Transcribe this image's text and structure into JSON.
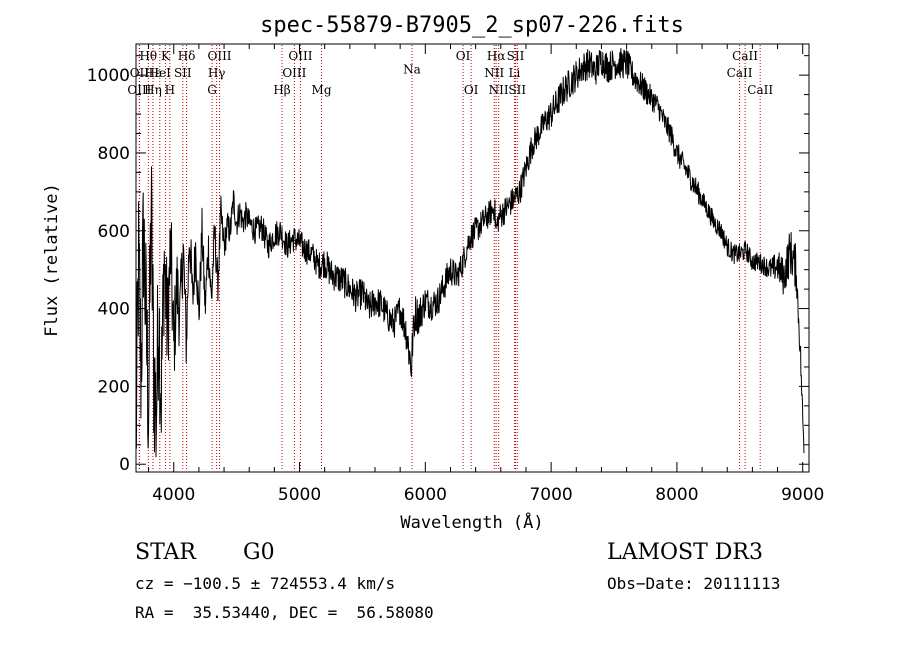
{
  "chart_data": {
    "type": "line",
    "title": "spec-55879-B7905_2_sp07-226.fits",
    "xlabel": "Wavelength (Å)",
    "ylabel": "Flux (relative)",
    "xlim": [
      3700,
      9050
    ],
    "ylim": [
      -20,
      1080
    ],
    "xticks": [
      4000,
      5000,
      6000,
      7000,
      8000,
      9000
    ],
    "yticks": [
      0,
      200,
      400,
      600,
      800,
      1000
    ],
    "grid": false,
    "legend": "none",
    "series": [
      {
        "name": "flux",
        "x": [
          3700,
          3720,
          3740,
          3760,
          3780,
          3800,
          3820,
          3840,
          3860,
          3880,
          3900,
          3925,
          3950,
          3975,
          4000,
          4025,
          4050,
          4075,
          4100,
          4125,
          4150,
          4175,
          4200,
          4225,
          4250,
          4275,
          4300,
          4325,
          4350,
          4375,
          4400,
          4425,
          4450,
          4475,
          4500,
          4525,
          4550,
          4575,
          4600,
          4650,
          4700,
          4750,
          4800,
          4850,
          4900,
          4950,
          5000,
          5050,
          5100,
          5150,
          5200,
          5250,
          5300,
          5350,
          5400,
          5450,
          5500,
          5550,
          5600,
          5650,
          5700,
          5750,
          5800,
          5850,
          5875,
          5890,
          5900,
          5920,
          5950,
          6000,
          6050,
          6100,
          6150,
          6200,
          6250,
          6300,
          6350,
          6400,
          6450,
          6500,
          6550,
          6563,
          6580,
          6600,
          6650,
          6700,
          6750,
          6800,
          6850,
          6900,
          6950,
          7000,
          7050,
          7100,
          7150,
          7200,
          7250,
          7300,
          7350,
          7400,
          7450,
          7500,
          7550,
          7600,
          7650,
          7700,
          7750,
          7800,
          7850,
          7900,
          7950,
          8000,
          8050,
          8100,
          8150,
          8200,
          8250,
          8300,
          8350,
          8400,
          8450,
          8500,
          8550,
          8600,
          8650,
          8700,
          8750,
          8800,
          8850,
          8900,
          8950,
          8960,
          8980,
          9000,
          9010
        ],
        "y": [
          50,
          520,
          240,
          600,
          360,
          150,
          660,
          260,
          120,
          400,
          180,
          530,
          340,
          560,
          300,
          460,
          380,
          560,
          310,
          600,
          420,
          560,
          380,
          600,
          400,
          560,
          420,
          600,
          460,
          640,
          560,
          610,
          600,
          680,
          620,
          650,
          620,
          640,
          620,
          600,
          610,
          560,
          590,
          600,
          560,
          580,
          570,
          550,
          540,
          510,
          520,
          490,
          480,
          470,
          450,
          430,
          440,
          400,
          420,
          410,
          380,
          360,
          400,
          340,
          280,
          250,
          320,
          390,
          380,
          420,
          410,
          420,
          460,
          500,
          480,
          520,
          580,
          600,
          620,
          640,
          660,
          600,
          630,
          640,
          660,
          680,
          700,
          760,
          820,
          850,
          880,
          900,
          930,
          960,
          980,
          1000,
          1020,
          1030,
          1010,
          1040,
          1020,
          1030,
          1030,
          1030,
          1000,
          980,
          960,
          940,
          920,
          880,
          850,
          800,
          770,
          740,
          710,
          680,
          650,
          620,
          600,
          560,
          540,
          540,
          550,
          520,
          520,
          510,
          500,
          510,
          480,
          550,
          500,
          420,
          300,
          120,
          40
        ],
        "noise": [
          200,
          220,
          220,
          220,
          220,
          220,
          220,
          220,
          220,
          200,
          200,
          160,
          150,
          140,
          120,
          110,
          100,
          90,
          80,
          80,
          70,
          70,
          60,
          60,
          60,
          60,
          50,
          50,
          50,
          50,
          40,
          40,
          40,
          40,
          40,
          35,
          35,
          35,
          35,
          35,
          35,
          35,
          35,
          35,
          35,
          35,
          35,
          35,
          35,
          35,
          40,
          40,
          40,
          40,
          40,
          40,
          40,
          40,
          40,
          40,
          40,
          40,
          40,
          50,
          60,
          60,
          50,
          50,
          50,
          40,
          40,
          40,
          40,
          40,
          35,
          35,
          35,
          35,
          35,
          35,
          35,
          35,
          35,
          35,
          35,
          35,
          35,
          35,
          35,
          35,
          35,
          40,
          40,
          40,
          40,
          40,
          40,
          40,
          40,
          40,
          40,
          40,
          40,
          40,
          35,
          35,
          35,
          30,
          30,
          30,
          30,
          30,
          30,
          30,
          30,
          25,
          25,
          25,
          25,
          25,
          25,
          25,
          25,
          25,
          25,
          25,
          30,
          40,
          50,
          60,
          60,
          40,
          40,
          30,
          30
        ]
      }
    ],
    "lines": [
      {
        "name": "Hθ",
        "wave": 3798,
        "row": 0
      },
      {
        "name": "K",
        "wave": 3934,
        "row": 0
      },
      {
        "name": "Hδ",
        "wave": 4102,
        "row": 0
      },
      {
        "name": "OIII",
        "wave": 4364,
        "row": 0
      },
      {
        "name": "OIII",
        "wave": 5007,
        "row": 0
      },
      {
        "name": "OI",
        "wave": 6300,
        "row": 0
      },
      {
        "name": "Hα",
        "wave": 6563,
        "row": 0
      },
      {
        "name": "SII",
        "wave": 6717,
        "row": 0
      },
      {
        "name": "CaII",
        "wave": 8542,
        "row": 0
      },
      {
        "name": "OII",
        "wave": 3727,
        "row": 1
      },
      {
        "name": "Hε",
        "wave": 3835,
        "row": 1
      },
      {
        "name": "HeI",
        "wave": 3889,
        "row": 1
      },
      {
        "name": "SII",
        "wave": 4072,
        "row": 1
      },
      {
        "name": "Hγ",
        "wave": 4341,
        "row": 1
      },
      {
        "name": "OIII",
        "wave": 4959,
        "row": 1
      },
      {
        "name": "NII",
        "wave": 6548,
        "row": 1
      },
      {
        "name": "Li",
        "wave": 6708,
        "row": 1
      },
      {
        "name": "CaII",
        "wave": 8498,
        "row": 1
      },
      {
        "name": "OIII",
        "wave": 3727,
        "row": 2
      },
      {
        "name": "Hη",
        "wave": 3835,
        "row": 2
      },
      {
        "name": "H",
        "wave": 3969,
        "row": 2
      },
      {
        "name": "G",
        "wave": 4305,
        "row": 2
      },
      {
        "name": "Hβ",
        "wave": 4861,
        "row": 2
      },
      {
        "name": "Mg",
        "wave": 5175,
        "row": 2
      },
      {
        "name": "Na",
        "wave": 5894,
        "row": 0.8
      },
      {
        "name": "OI",
        "wave": 6364,
        "row": 2
      },
      {
        "name": "NII",
        "wave": 6583,
        "row": 2
      },
      {
        "name": "SII",
        "wave": 6731,
        "row": 2
      },
      {
        "name": "CaII",
        "wave": 8662,
        "row": 2
      }
    ]
  },
  "info": {
    "object_class": "STAR",
    "subclass": "G0",
    "survey": "LAMOST DR3",
    "cz": "cz = −100.5 ± 724553.4 km/s",
    "obs_date": "Obs−Date: 20111113",
    "coords": "RA =  35.53440, DEC =  56.58080"
  }
}
